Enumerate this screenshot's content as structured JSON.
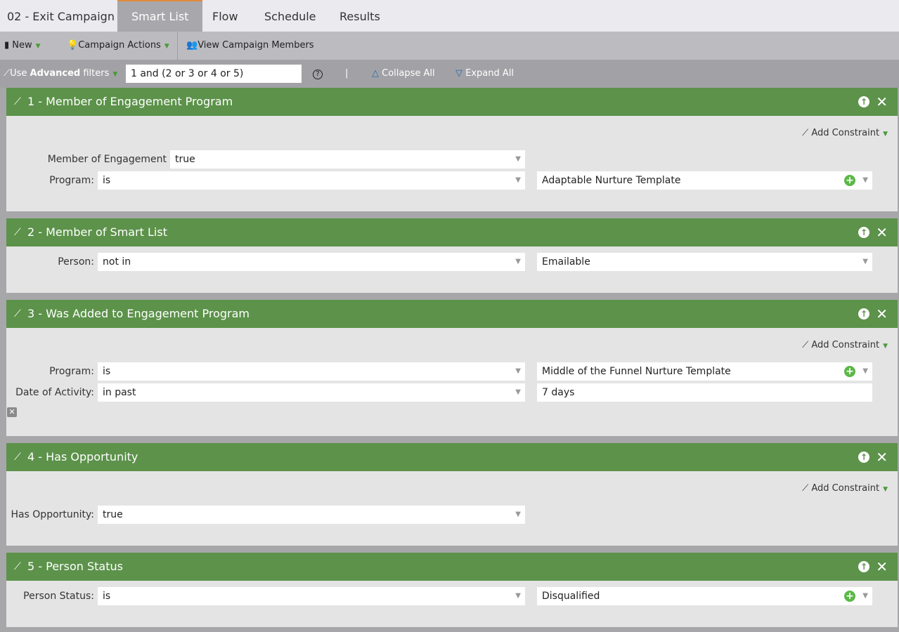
{
  "tabs": {
    "title": "02 - Exit Campaign",
    "items": [
      "Smart List",
      "Flow",
      "Schedule",
      "Results"
    ],
    "active": "Smart List"
  },
  "toolbar": {
    "new": "New",
    "campaign_actions": "Campaign Actions",
    "view_members": "View Campaign Members"
  },
  "filterbar": {
    "use": "Use ",
    "advanced": "Advanced",
    "filters": " filters",
    "logic": "1 and (2 or 3 or 4 or 5)",
    "help": "?",
    "divider": "|",
    "collapse": "Collapse All",
    "expand": "Expand All"
  },
  "add_constraint": "Add Constraint",
  "filters": [
    {
      "title": "1 - Member of Engagement Program",
      "rows": [
        {
          "label": "Member of Engagement Program:",
          "operator": "true"
        },
        {
          "label": "Program:",
          "operator": "is",
          "value": "Adaptable Nurture Template"
        }
      ]
    },
    {
      "title": "2 - Member of Smart List",
      "rows": [
        {
          "label": "Person:",
          "operator": "not in",
          "value": "Emailable"
        }
      ]
    },
    {
      "title": "3 - Was Added to Engagement Program",
      "rows": [
        {
          "label": "Program:",
          "operator": "is",
          "value": "Middle of the Funnel Nurture Template"
        },
        {
          "label": "Date of Activity:",
          "operator": "in past",
          "value": "7 days"
        }
      ]
    },
    {
      "title": "4 - Has Opportunity",
      "rows": [
        {
          "label": "Has Opportunity:",
          "operator": "true"
        }
      ]
    },
    {
      "title": "5 - Person Status",
      "rows": [
        {
          "label": "Person Status:",
          "operator": "is",
          "value": "Disqualified"
        }
      ]
    }
  ],
  "colors": {
    "panel_header": "#5c924a",
    "active_tab_accent": "#e08b3a"
  }
}
